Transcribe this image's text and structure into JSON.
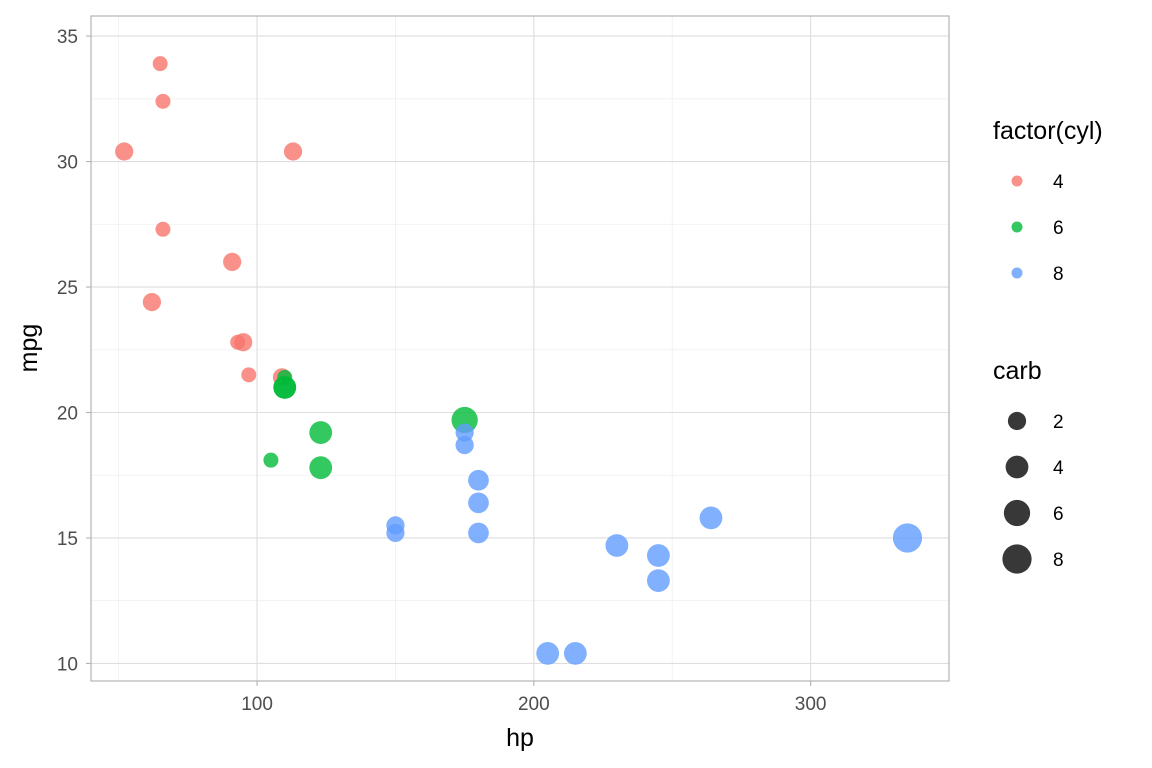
{
  "chart_data": {
    "type": "scatter",
    "title": "",
    "xlabel": "hp",
    "ylabel": "mpg",
    "xlim": [
      40,
      350
    ],
    "ylim": [
      9.3,
      35.8
    ],
    "x_ticks": [
      100,
      200,
      300
    ],
    "y_ticks": [
      10,
      15,
      20,
      25,
      30,
      35
    ],
    "grid": true,
    "legend_position": "right",
    "color_legend": {
      "title": "factor(cyl)",
      "items": [
        {
          "label": "4",
          "color": "#F8766D"
        },
        {
          "label": "6",
          "color": "#00BA38"
        },
        {
          "label": "8",
          "color": "#619CFF"
        }
      ]
    },
    "size_legend": {
      "title": "carb",
      "items": [
        {
          "label": "2",
          "value": 2
        },
        {
          "label": "4",
          "value": 4
        },
        {
          "label": "6",
          "value": 6
        },
        {
          "label": "8",
          "value": 8
        }
      ]
    },
    "series": [
      {
        "name": "4",
        "color": "#F8766D",
        "points": [
          {
            "x": 93,
            "y": 22.8,
            "size": 1
          },
          {
            "x": 62,
            "y": 24.4,
            "size": 2
          },
          {
            "x": 95,
            "y": 22.8,
            "size": 2
          },
          {
            "x": 66,
            "y": 32.4,
            "size": 1
          },
          {
            "x": 52,
            "y": 30.4,
            "size": 2
          },
          {
            "x": 65,
            "y": 33.9,
            "size": 1
          },
          {
            "x": 97,
            "y": 21.5,
            "size": 1
          },
          {
            "x": 66,
            "y": 27.3,
            "size": 1
          },
          {
            "x": 91,
            "y": 26.0,
            "size": 2
          },
          {
            "x": 113,
            "y": 30.4,
            "size": 2
          },
          {
            "x": 109,
            "y": 21.4,
            "size": 2
          }
        ]
      },
      {
        "name": "6",
        "color": "#00BA38",
        "points": [
          {
            "x": 110,
            "y": 21.0,
            "size": 4
          },
          {
            "x": 110,
            "y": 21.0,
            "size": 4
          },
          {
            "x": 110,
            "y": 21.4,
            "size": 1
          },
          {
            "x": 105,
            "y": 18.1,
            "size": 1
          },
          {
            "x": 123,
            "y": 19.2,
            "size": 4
          },
          {
            "x": 123,
            "y": 17.8,
            "size": 4
          },
          {
            "x": 175,
            "y": 19.7,
            "size": 6
          }
        ]
      },
      {
        "name": "8",
        "color": "#619CFF",
        "points": [
          {
            "x": 175,
            "y": 18.7,
            "size": 2
          },
          {
            "x": 245,
            "y": 14.3,
            "size": 4
          },
          {
            "x": 180,
            "y": 16.4,
            "size": 3
          },
          {
            "x": 180,
            "y": 17.3,
            "size": 3
          },
          {
            "x": 180,
            "y": 15.2,
            "size": 3
          },
          {
            "x": 205,
            "y": 10.4,
            "size": 4
          },
          {
            "x": 215,
            "y": 10.4,
            "size": 4
          },
          {
            "x": 230,
            "y": 14.7,
            "size": 4
          },
          {
            "x": 150,
            "y": 15.5,
            "size": 2
          },
          {
            "x": 150,
            "y": 15.2,
            "size": 2
          },
          {
            "x": 245,
            "y": 13.3,
            "size": 4
          },
          {
            "x": 175,
            "y": 19.2,
            "size": 2
          },
          {
            "x": 264,
            "y": 15.8,
            "size": 4
          },
          {
            "x": 335,
            "y": 15.0,
            "size": 8
          }
        ]
      }
    ]
  }
}
